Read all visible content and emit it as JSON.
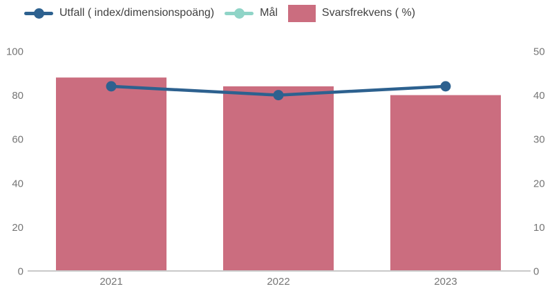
{
  "legend": {
    "items": [
      {
        "id": "utfall",
        "label": "Utfall ( index/dimensionspoäng)",
        "marker": "line-dot",
        "color": "#2d618f"
      },
      {
        "id": "mal",
        "label": "Mål",
        "marker": "line-dot",
        "color": "#8fd4c7"
      },
      {
        "id": "svarsfrekvens",
        "label": "Svarsfrekvens ( %)",
        "marker": "rect",
        "color": "#cb6d7f"
      }
    ]
  },
  "chart_data": {
    "type": "combo-bar-line",
    "categories": [
      "2021",
      "2022",
      "2023"
    ],
    "series": [
      {
        "name": "Utfall ( index/dimensionspoäng)",
        "type": "line",
        "axis": "left",
        "color": "#2d618f",
        "values": [
          84,
          80,
          84
        ]
      },
      {
        "name": "Mål",
        "type": "line",
        "axis": "left",
        "color": "#8fd4c7",
        "values": []
      },
      {
        "name": "Svarsfrekvens ( %)",
        "type": "bar",
        "axis": "right",
        "color": "#cb6d7f",
        "values": [
          44,
          42,
          40
        ]
      }
    ],
    "left_axis": {
      "min": 0,
      "max": 100,
      "ticks": [
        0,
        20,
        40,
        60,
        80,
        100
      ]
    },
    "right_axis": {
      "min": 0,
      "max": 50,
      "ticks": [
        0,
        10,
        20,
        30,
        40,
        50
      ]
    },
    "grid": false,
    "legend_position": "top-left",
    "colors": {
      "axis_line": "#c9c9c9",
      "tick_text": "#757575",
      "legend_text": "#3f3f3f",
      "background": "#ffffff"
    }
  }
}
